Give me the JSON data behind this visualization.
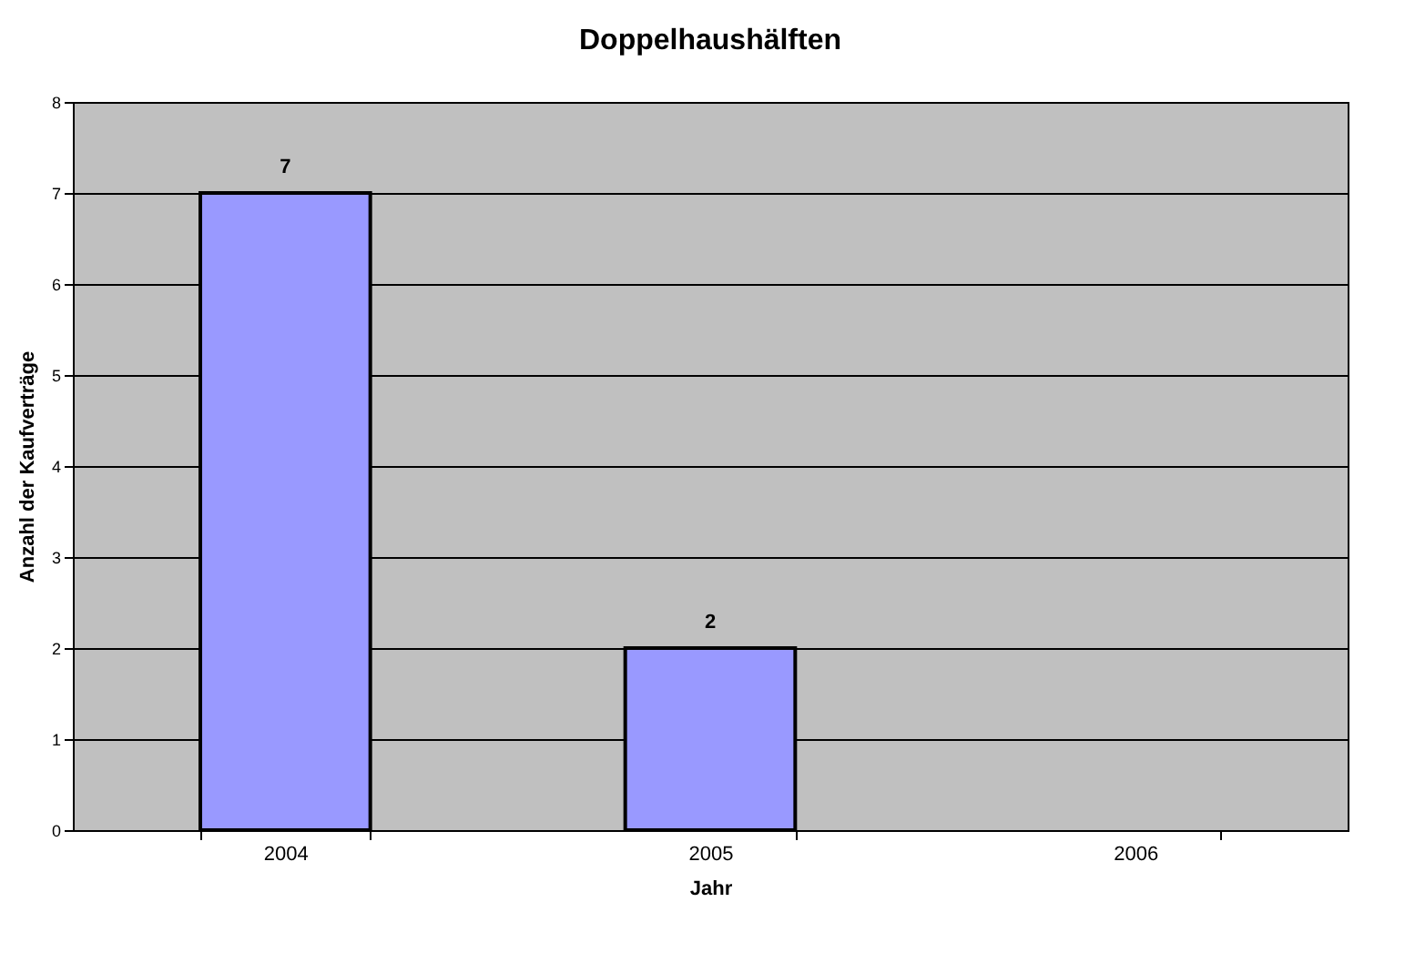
{
  "chart_data": {
    "type": "bar",
    "title": "Doppelhaushälften",
    "xlabel": "Jahr",
    "ylabel": "Anzahl der Kaufverträge",
    "categories": [
      "2004",
      "2005",
      "2006"
    ],
    "values": [
      7,
      2,
      null
    ],
    "color": "#9999ff",
    "ylim": [
      0,
      8
    ],
    "yticks": [
      0,
      1,
      2,
      3,
      4,
      5,
      6,
      7,
      8
    ],
    "grid": "y",
    "data_labels": true
  }
}
